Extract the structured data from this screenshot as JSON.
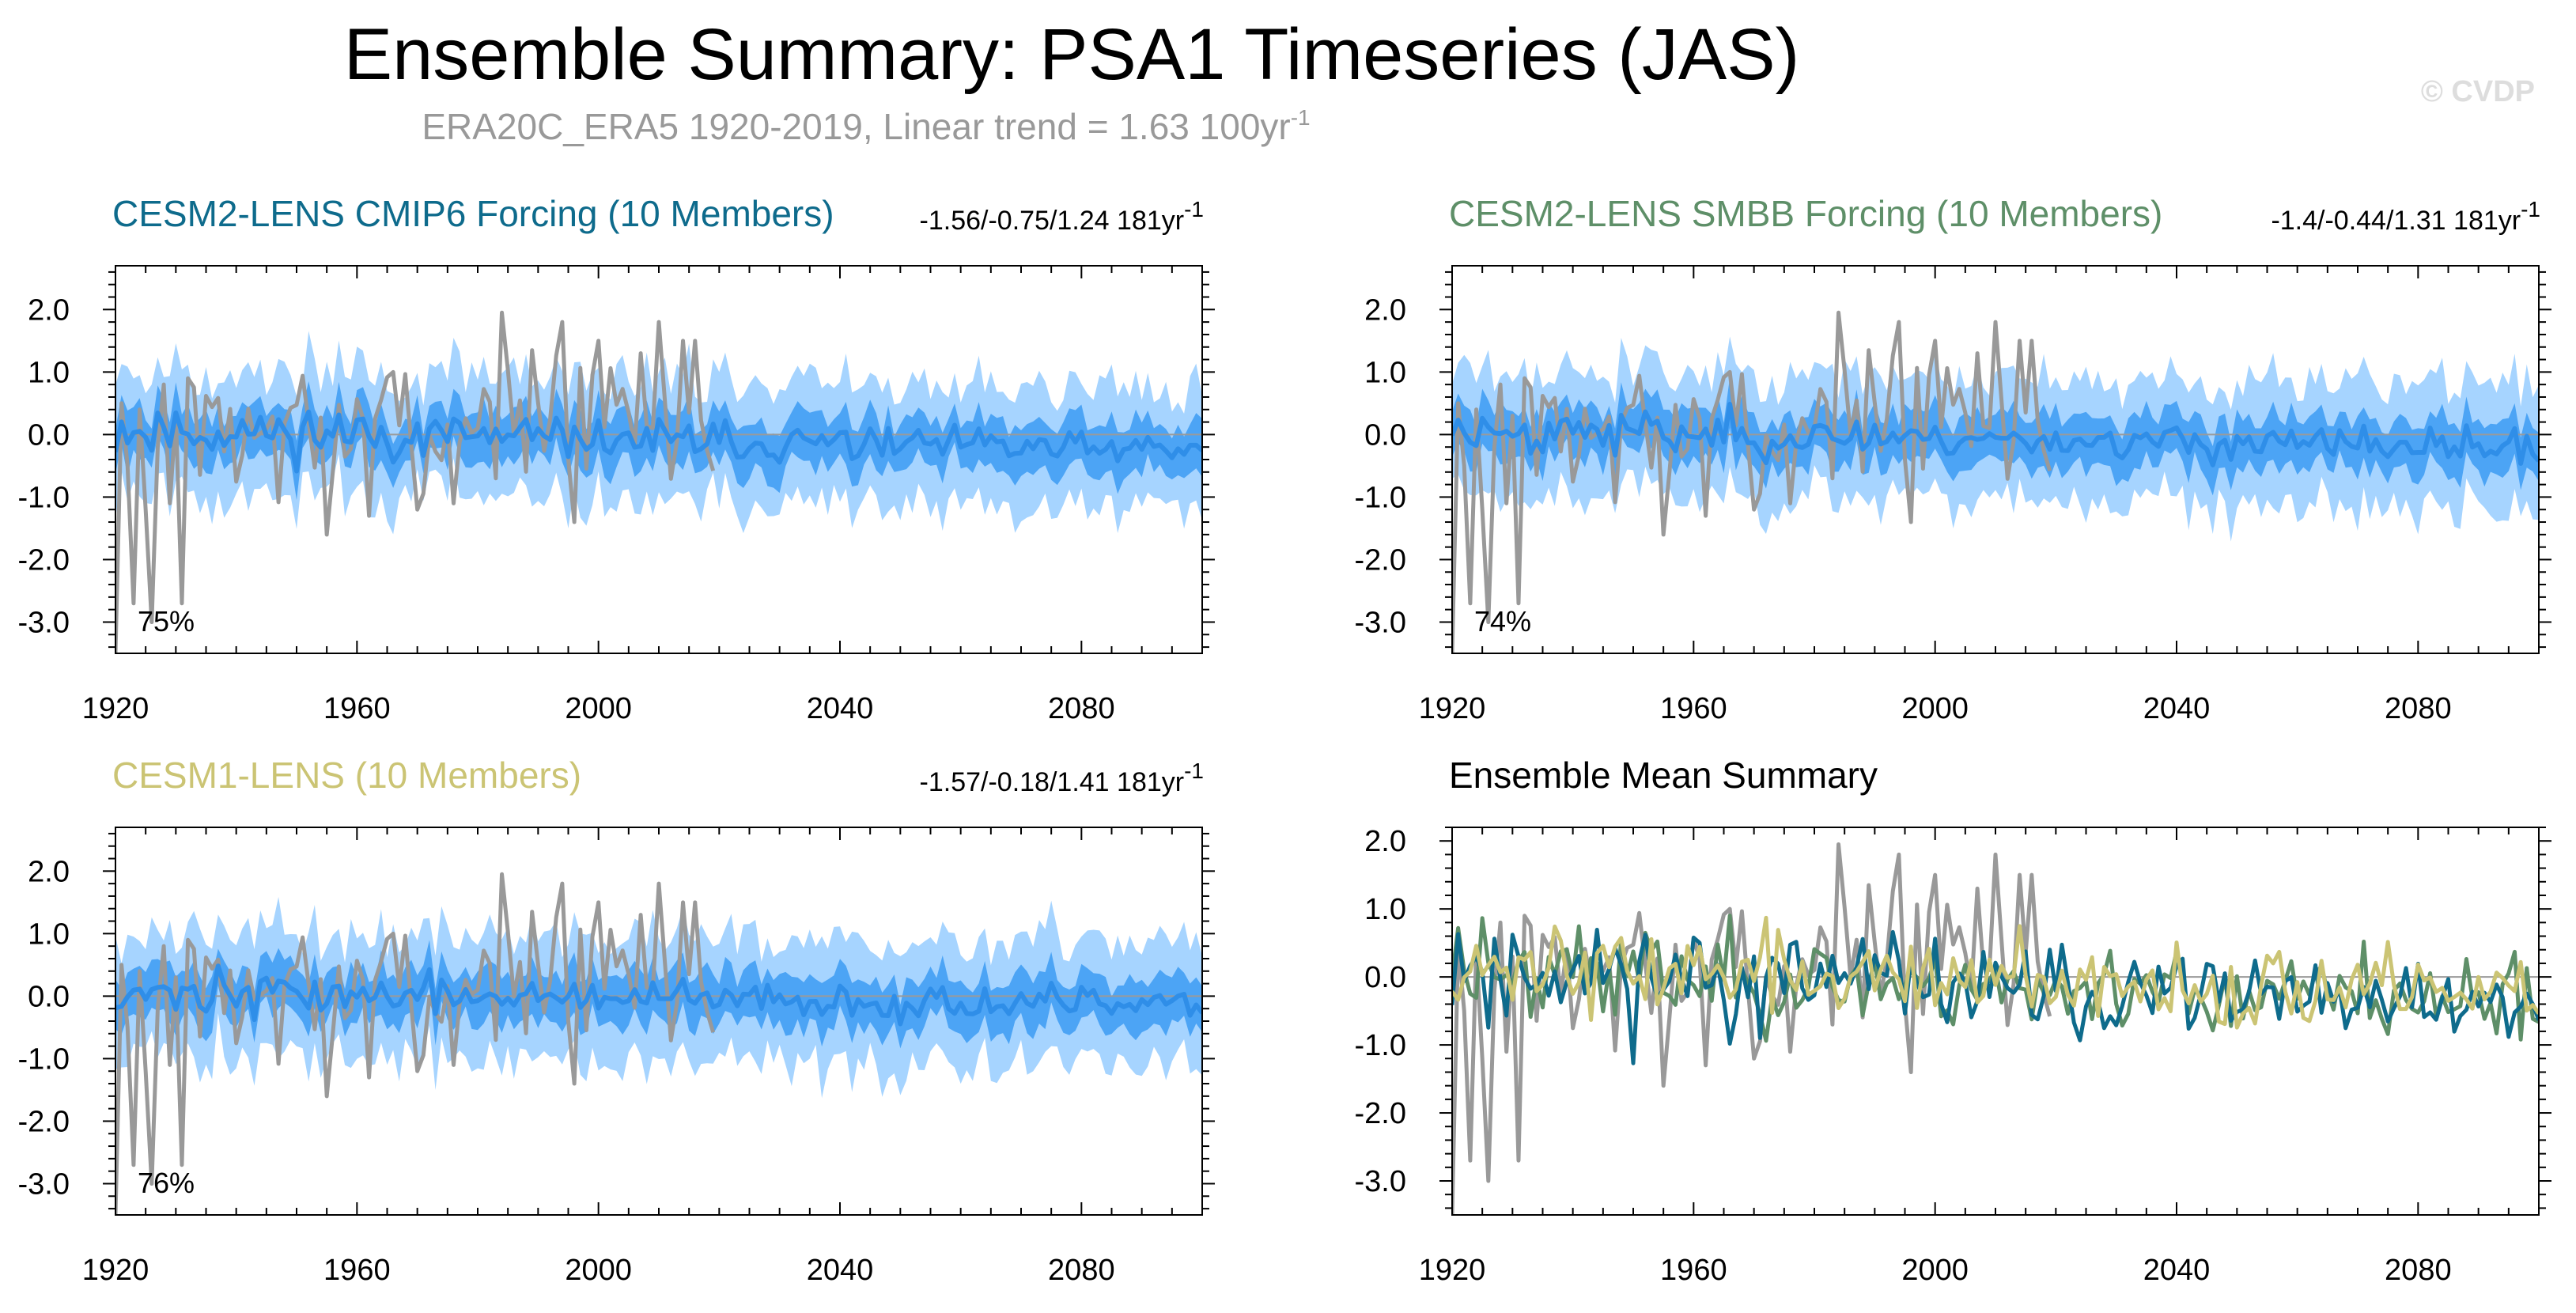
{
  "title": "Ensemble Summary: PSA1 Timeseries (JAS)",
  "subtitle": "ERA20C_ERA5 1920-2019, Linear trend = 1.63 100yr",
  "subtitle_sup": "-1",
  "watermark": "© CVDP",
  "colors": {
    "band_outer": "#a6d4ff",
    "band_inner": "#4ca4f5",
    "ensemble_mean": "#2f8ee8",
    "observed": "#999999",
    "cmip6": "#0e6b8c",
    "smbb": "#5e8f68",
    "cesm1": "#cbc474"
  },
  "chart_data": [
    {
      "id": "cmip6",
      "type": "area",
      "title": "CESM2-LENS CMIP6 Forcing (10 Members)",
      "title_color": "#0e6b8c",
      "stats": "-1.56/-0.75/1.24 181yr",
      "stats_sup": "-1",
      "percent_label": "75%",
      "xlabel": "",
      "ylabel": "",
      "xlim": [
        1920,
        2100
      ],
      "ylim": [
        -3.5,
        2.7
      ],
      "xticks": [
        "1920",
        "1960",
        "2000",
        "2040",
        "2080"
      ],
      "yticks": [
        "2.0",
        "1.0",
        "0.0",
        "-1.0",
        "-2.0",
        "-3.0"
      ],
      "series": [
        {
          "name": "ERA20C_ERA5 observed",
          "years": [
            1920,
            2019
          ]
        },
        {
          "name": "Ensemble mean",
          "years": [
            1920,
            2100
          ]
        },
        {
          "name": "Inner percentile range",
          "years": [
            1920,
            2100
          ]
        },
        {
          "name": "Member min/max range",
          "years": [
            1920,
            2100
          ]
        }
      ]
    },
    {
      "id": "smbb",
      "type": "area",
      "title": "CESM2-LENS SMBB Forcing (10 Members)",
      "title_color": "#5e8f68",
      "stats": "-1.4/-0.44/1.31 181yr",
      "stats_sup": "-1",
      "percent_label": "74%",
      "xlabel": "",
      "ylabel": "",
      "xlim": [
        1920,
        2100
      ],
      "ylim": [
        -3.5,
        2.7
      ],
      "xticks": [
        "1920",
        "1960",
        "2000",
        "2040",
        "2080"
      ],
      "yticks": [
        "2.0",
        "1.0",
        "0.0",
        "-1.0",
        "-2.0",
        "-3.0"
      ],
      "series": [
        {
          "name": "ERA20C_ERA5 observed",
          "years": [
            1920,
            2019
          ]
        },
        {
          "name": "Ensemble mean",
          "years": [
            1920,
            2100
          ]
        },
        {
          "name": "Inner percentile range",
          "years": [
            1920,
            2100
          ]
        },
        {
          "name": "Member min/max range",
          "years": [
            1920,
            2100
          ]
        }
      ]
    },
    {
      "id": "cesm1",
      "type": "area",
      "title": "CESM1-LENS (10 Members)",
      "title_color": "#cbc474",
      "stats": "-1.57/-0.18/1.41 181yr",
      "stats_sup": "-1",
      "percent_label": "76%",
      "xlabel": "",
      "ylabel": "",
      "xlim": [
        1920,
        2100
      ],
      "ylim": [
        -3.5,
        2.7
      ],
      "xticks": [
        "1920",
        "1960",
        "2000",
        "2040",
        "2080"
      ],
      "yticks": [
        "2.0",
        "1.0",
        "0.0",
        "-1.0",
        "-2.0",
        "-3.0"
      ],
      "series": [
        {
          "name": "ERA20C_ERA5 observed",
          "years": [
            1920,
            2019
          ]
        },
        {
          "name": "Ensemble mean",
          "years": [
            1920,
            2100
          ]
        },
        {
          "name": "Inner percentile range",
          "years": [
            1920,
            2100
          ]
        },
        {
          "name": "Member min/max range",
          "years": [
            1920,
            2100
          ]
        }
      ]
    },
    {
      "id": "mean",
      "type": "line",
      "title": "Ensemble Mean Summary",
      "title_color": "#000000",
      "stats": "",
      "stats_sup": "",
      "percent_label": "",
      "xlabel": "",
      "ylabel": "",
      "xlim": [
        1920,
        2100
      ],
      "ylim": [
        -3.5,
        2.2
      ],
      "xticks": [
        "1920",
        "1960",
        "2000",
        "2040",
        "2080"
      ],
      "yticks": [
        "2.0",
        "1.0",
        "0.0",
        "-1.0",
        "-2.0",
        "-3.0"
      ],
      "series": [
        {
          "name": "ERA20C_ERA5 observed",
          "years": [
            1920,
            2019
          ]
        },
        {
          "name": "CESM2-LENS CMIP6 Forcing ensemble mean",
          "years": [
            1920,
            2100
          ]
        },
        {
          "name": "CESM2-LENS SMBB Forcing ensemble mean",
          "years": [
            1920,
            2100
          ]
        },
        {
          "name": "CESM1-LENS ensemble mean",
          "years": [
            1920,
            2100
          ]
        }
      ]
    }
  ]
}
